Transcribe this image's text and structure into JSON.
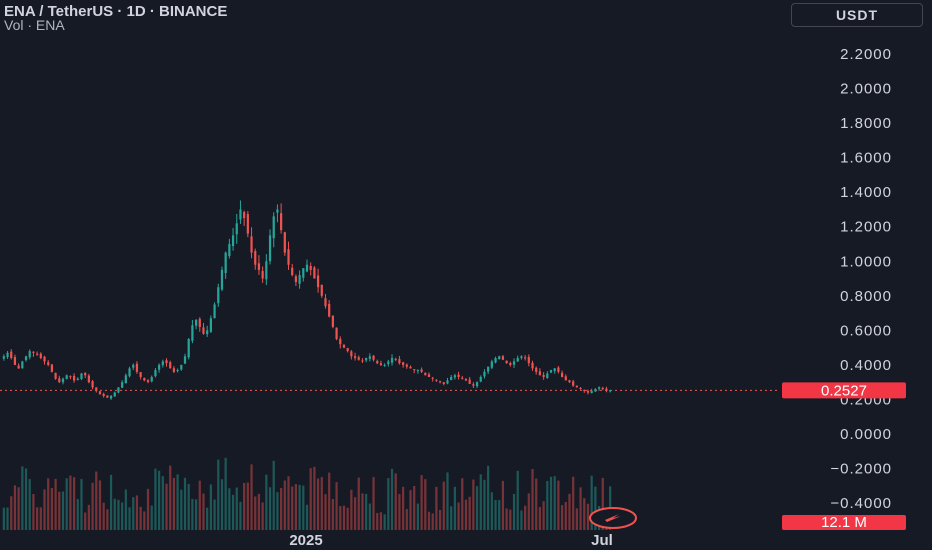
{
  "header": {
    "title": "ENA / TetherUS · 1D · BINANCE",
    "volume_label": "Vol · ENA",
    "currency_button": "USDT"
  },
  "colors": {
    "up": "#26a69a",
    "down": "#ef5350",
    "background": "#161a25",
    "text": "#d1d4dc"
  },
  "chart_data": {
    "type": "candlestick",
    "symbol": "ENA / TetherUS",
    "interval": "1D",
    "exchange": "BINANCE",
    "y_ticks": [
      "2.2000",
      "2.0000",
      "1.8000",
      "1.6000",
      "1.4000",
      "1.2000",
      "1.0000",
      "0.8000",
      "0.6000",
      "0.4000",
      "0.2000",
      "0.0000",
      "−0.2000",
      "−0.4000"
    ],
    "ylim": [
      -0.4,
      2.2
    ],
    "x_ticks": [
      "2025",
      "Jul"
    ],
    "last_price": "0.2527",
    "last_volume": "12.1 M",
    "close_series": [
      0.45,
      0.47,
      0.44,
      0.4,
      0.38,
      0.42,
      0.45,
      0.48,
      0.47,
      0.46,
      0.44,
      0.42,
      0.4,
      0.36,
      0.32,
      0.3,
      0.32,
      0.34,
      0.33,
      0.31,
      0.32,
      0.35,
      0.34,
      0.3,
      0.27,
      0.25,
      0.23,
      0.22,
      0.21,
      0.22,
      0.24,
      0.27,
      0.3,
      0.34,
      0.38,
      0.4,
      0.36,
      0.33,
      0.31,
      0.3,
      0.33,
      0.37,
      0.4,
      0.42,
      0.41,
      0.38,
      0.36,
      0.37,
      0.4,
      0.45,
      0.55,
      0.63,
      0.66,
      0.62,
      0.58,
      0.6,
      0.67,
      0.75,
      0.85,
      0.95,
      1.05,
      1.1,
      1.15,
      1.22,
      1.3,
      1.25,
      1.16,
      1.05,
      0.98,
      0.95,
      0.9,
      1.0,
      1.15,
      1.26,
      1.3,
      1.18,
      1.05,
      0.98,
      0.92,
      0.88,
      0.92,
      0.96,
      0.98,
      0.95,
      0.9,
      0.85,
      0.8,
      0.74,
      0.68,
      0.62,
      0.55,
      0.52,
      0.5,
      0.48,
      0.45,
      0.44,
      0.43,
      0.42,
      0.44,
      0.45,
      0.43,
      0.41,
      0.4,
      0.4,
      0.42,
      0.44,
      0.43,
      0.41,
      0.4,
      0.39,
      0.38,
      0.37,
      0.37,
      0.36,
      0.34,
      0.33,
      0.32,
      0.31,
      0.3,
      0.29,
      0.31,
      0.33,
      0.34,
      0.33,
      0.32,
      0.31,
      0.29,
      0.28,
      0.3,
      0.33,
      0.36,
      0.39,
      0.42,
      0.44,
      0.45,
      0.43,
      0.41,
      0.4,
      0.42,
      0.44,
      0.45,
      0.44,
      0.41,
      0.38,
      0.36,
      0.34,
      0.33,
      0.35,
      0.37,
      0.38,
      0.36,
      0.33,
      0.31,
      0.3,
      0.28,
      0.27,
      0.26,
      0.25,
      0.24,
      0.25,
      0.26,
      0.27,
      0.26,
      0.25,
      0.2527
    ]
  }
}
